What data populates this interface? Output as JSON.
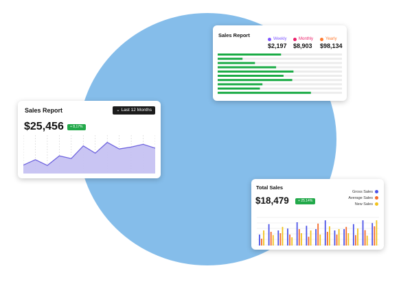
{
  "colors": {
    "blob": "#85bdea",
    "green_badge": "#22a94a",
    "line_stroke": "#6e63de",
    "area_fill": "#c6c2f2",
    "bar_green": "#1aab45",
    "track": "#ececec",
    "weekly": "#7e57ff",
    "monthly": "#ec1f6a",
    "yearly": "#ff7a2f",
    "gross": "#4b52e8",
    "average": "#f56a2a",
    "new": "#f2c21a"
  },
  "sales_report_left": {
    "title": "Sales Report",
    "period_button": "Last 12 Months",
    "period_icon": "chevron-down-icon",
    "total": "$25,456",
    "change": "+ 8,17%",
    "chart_data": {
      "type": "area",
      "values": [
        2.2,
        3.6,
        2.1,
        4.6,
        3.9,
        7.2,
        5.3,
        8.1,
        6.4,
        6.9,
        7.6,
        6.6
      ]
    }
  },
  "sales_report_top": {
    "title": "Sales Report",
    "metrics": [
      {
        "label": "Weekly",
        "value": "$2,197",
        "color": "#7e57ff"
      },
      {
        "label": "Monthly",
        "value": "$8,903",
        "color": "#ec1f6a"
      },
      {
        "label": "Yearly",
        "value": "$98,134",
        "color": "#ff7a2f"
      }
    ],
    "chart_data": {
      "type": "bar",
      "orientation": "horizontal",
      "values": [
        0.51,
        0.2,
        0.3,
        0.47,
        0.61,
        0.53,
        0.6,
        0.36,
        0.34,
        0.75
      ]
    }
  },
  "total_sales": {
    "title": "Total Sales",
    "total": "$18,479",
    "change": "+ 25.14%",
    "legend": [
      {
        "label": "Gross Sales",
        "color": "#4b52e8"
      },
      {
        "label": "Average Sales",
        "color": "#f56a2a"
      },
      {
        "label": "New Sales",
        "color": "#f2c21a"
      }
    ],
    "chart_data": {
      "type": "bar",
      "series": [
        {
          "name": "Gross Sales",
          "values": [
            0.4,
            0.78,
            0.55,
            0.62,
            0.85,
            0.72,
            0.6,
            0.92,
            0.55,
            0.6,
            0.78,
            0.92,
            0.82
          ]
        },
        {
          "name": "Average Sales",
          "values": [
            0.25,
            0.5,
            0.45,
            0.4,
            0.6,
            0.32,
            0.8,
            0.5,
            0.4,
            0.68,
            0.38,
            0.56,
            0.7
          ]
        },
        {
          "name": "New Sales",
          "values": [
            0.55,
            0.38,
            0.68,
            0.3,
            0.45,
            0.55,
            0.4,
            0.7,
            0.6,
            0.45,
            0.62,
            0.36,
            0.92
          ]
        }
      ]
    }
  }
}
